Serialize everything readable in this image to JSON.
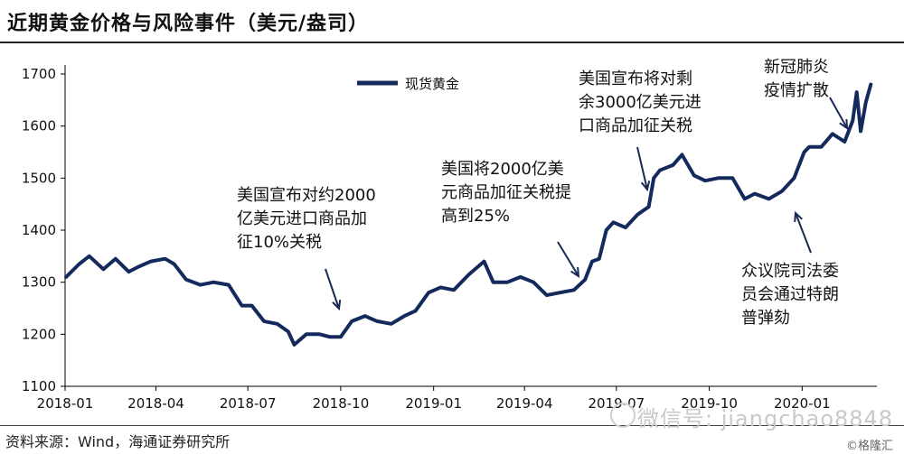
{
  "header": {
    "title": "近期黄金价格与风险事件（美元/盎司）"
  },
  "footer": {
    "source": "资料来源：Wind，海通证券研究所",
    "watermark": "微信号: jiangchao8848",
    "corner_mark": "©格隆汇"
  },
  "colors": {
    "series": "#142a5c",
    "axis": "#000000"
  },
  "chart_data": {
    "type": "line",
    "title": "近期黄金价格与风险事件（美元/盎司）",
    "xlabel": "",
    "ylabel": "",
    "ylim": [
      1100,
      1700
    ],
    "yticks": [
      1100,
      1200,
      1300,
      1400,
      1500,
      1600,
      1700
    ],
    "xlim": [
      "2018-01",
      "2020-03"
    ],
    "xticks": [
      "2018-01",
      "2018-04",
      "2018-07",
      "2018-10",
      "2019-01",
      "2019-04",
      "2019-07",
      "2019-10",
      "2020-01"
    ],
    "legend": {
      "position": "top-center",
      "entries": [
        "现货黄金"
      ]
    },
    "grid": false,
    "series": [
      {
        "name": "现货黄金",
        "x": [
          "2018-01-02",
          "2018-01-15",
          "2018-01-25",
          "2018-02-08",
          "2018-02-20",
          "2018-03-05",
          "2018-03-15",
          "2018-03-27",
          "2018-04-10",
          "2018-04-19",
          "2018-05-01",
          "2018-05-15",
          "2018-05-28",
          "2018-06-12",
          "2018-06-25",
          "2018-07-05",
          "2018-07-17",
          "2018-07-30",
          "2018-08-10",
          "2018-08-16",
          "2018-08-28",
          "2018-09-10",
          "2018-09-20",
          "2018-10-01",
          "2018-10-12",
          "2018-10-25",
          "2018-11-06",
          "2018-11-20",
          "2018-12-03",
          "2018-12-14",
          "2018-12-27",
          "2019-01-08",
          "2019-01-21",
          "2019-02-05",
          "2019-02-20",
          "2019-03-01",
          "2019-03-15",
          "2019-03-28",
          "2019-04-10",
          "2019-04-23",
          "2019-05-06",
          "2019-05-20",
          "2019-05-31",
          "2019-06-07",
          "2019-06-14",
          "2019-06-21",
          "2019-06-28",
          "2019-07-10",
          "2019-07-22",
          "2019-08-02",
          "2019-08-07",
          "2019-08-13",
          "2019-08-26",
          "2019-09-04",
          "2019-09-16",
          "2019-09-27",
          "2019-10-10",
          "2019-10-24",
          "2019-11-05",
          "2019-11-15",
          "2019-11-29",
          "2019-12-12",
          "2019-12-24",
          "2020-01-03",
          "2020-01-08",
          "2020-01-20",
          "2020-01-31",
          "2020-02-12",
          "2020-02-20",
          "2020-02-24",
          "2020-02-28",
          "2020-03-04",
          "2020-03-09"
        ],
        "values": [
          1310,
          1335,
          1350,
          1325,
          1345,
          1320,
          1330,
          1340,
          1345,
          1335,
          1305,
          1295,
          1300,
          1295,
          1255,
          1255,
          1225,
          1220,
          1205,
          1180,
          1200,
          1200,
          1195,
          1195,
          1225,
          1235,
          1225,
          1220,
          1235,
          1245,
          1280,
          1290,
          1285,
          1315,
          1340,
          1300,
          1300,
          1310,
          1300,
          1275,
          1280,
          1285,
          1305,
          1340,
          1345,
          1400,
          1415,
          1405,
          1430,
          1445,
          1500,
          1515,
          1525,
          1545,
          1505,
          1495,
          1500,
          1500,
          1460,
          1470,
          1460,
          1475,
          1500,
          1550,
          1560,
          1560,
          1585,
          1570,
          1610,
          1665,
          1590,
          1645,
          1680
        ]
      }
    ],
    "annotations": [
      {
        "date": "2018-09-20",
        "lines": [
          "美国宣布对约2000",
          "亿美元进口商品加",
          "征10%关税"
        ]
      },
      {
        "date": "2019-05-13",
        "lines": [
          "美国将2000亿美",
          "元商品加征关税提",
          "高到25%"
        ]
      },
      {
        "date": "2019-08-07",
        "lines": [
          "美国宣布将对剩",
          "余3000亿美元进",
          "口商品加征关税"
        ]
      },
      {
        "date": "2020-01-28",
        "lines": [
          "新冠肺炎",
          "疫情扩散"
        ]
      },
      {
        "date": "2019-12-18",
        "lines": [
          "众议院司法委",
          "员会通过特朗",
          "普弹劾"
        ]
      }
    ]
  }
}
